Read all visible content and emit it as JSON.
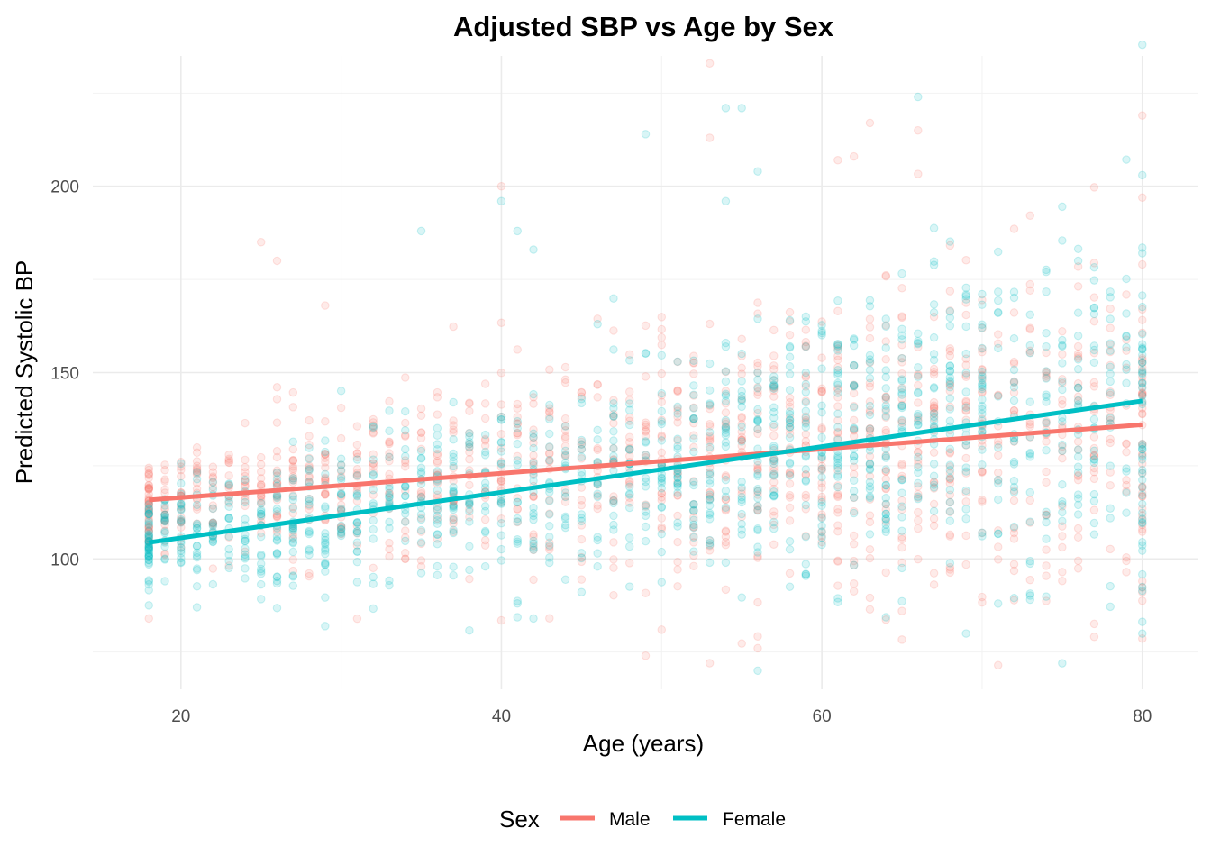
{
  "chart_data": {
    "type": "scatter",
    "title": "Adjusted SBP vs Age by Sex",
    "xlabel": "Age (years)",
    "ylabel": "Predicted Systolic BP",
    "xlim": [
      14.5,
      83.5
    ],
    "ylim": [
      65,
      235
    ],
    "x_ticks": [
      20,
      40,
      60,
      80
    ],
    "y_ticks": [
      100,
      150,
      200
    ],
    "x_tick_labels": [
      "20",
      "40",
      "60",
      "80"
    ],
    "y_tick_labels": [
      "100",
      "150",
      "200"
    ],
    "grid": true,
    "legend": {
      "title": "Sex",
      "position": "bottom"
    },
    "series": [
      {
        "name": "Male",
        "color": "#F8766D",
        "fit_line": {
          "x": [
            18,
            80
          ],
          "y": [
            115.8,
            136
          ]
        }
      },
      {
        "name": "Female",
        "color": "#00BFC4",
        "fit_line": {
          "x": [
            18,
            80
          ],
          "y": [
            104.4,
            142.4
          ]
        }
      }
    ],
    "points": {
      "age_range": [
        18,
        80
      ],
      "note_alpha": 0.15,
      "notable_female": [
        [
          80,
          238
        ],
        [
          66,
          224
        ],
        [
          54,
          221
        ],
        [
          55,
          221
        ],
        [
          49,
          214
        ],
        [
          56,
          204
        ],
        [
          80,
          203
        ],
        [
          40,
          196
        ],
        [
          54,
          196
        ],
        [
          35,
          188
        ],
        [
          41,
          188
        ],
        [
          42,
          183
        ],
        [
          21,
          87
        ],
        [
          42,
          84
        ],
        [
          71,
          88
        ]
      ],
      "notable_male": [
        [
          53,
          233
        ],
        [
          80,
          219
        ],
        [
          63,
          217
        ],
        [
          66,
          215
        ],
        [
          53,
          213
        ],
        [
          61,
          207
        ],
        [
          62,
          208
        ],
        [
          40,
          200
        ],
        [
          25,
          185
        ],
        [
          26,
          180
        ],
        [
          29,
          168
        ],
        [
          18,
          84
        ],
        [
          50,
          81
        ],
        [
          49,
          74
        ],
        [
          53,
          72
        ]
      ]
    }
  }
}
